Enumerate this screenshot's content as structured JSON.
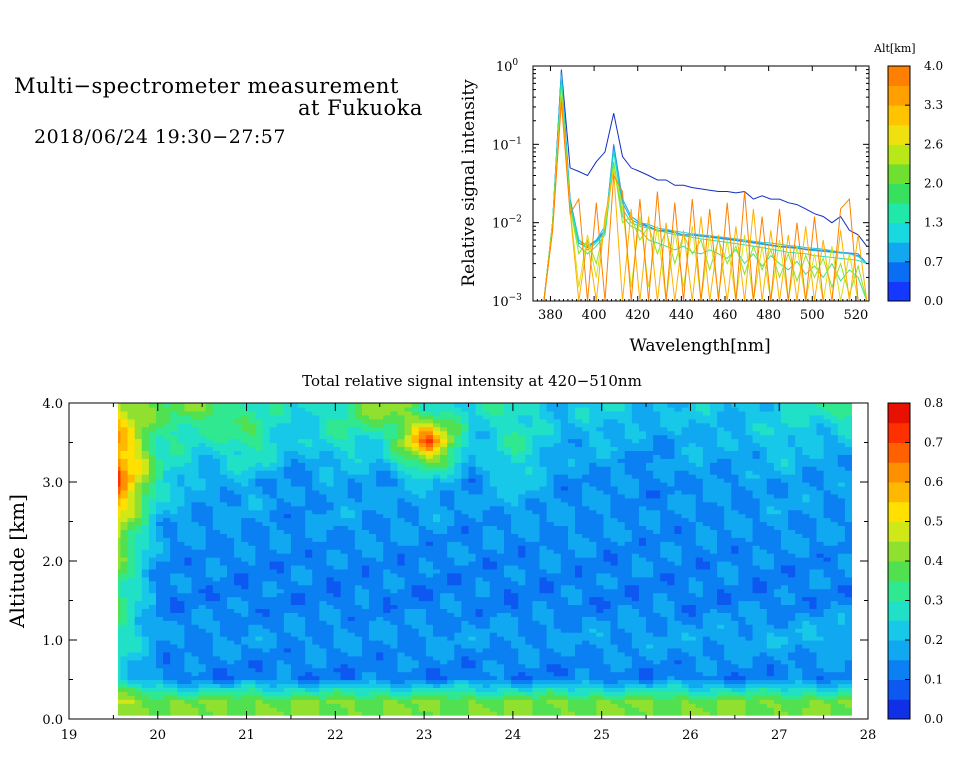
{
  "header": {
    "title_line1": "Multi−spectrometer measurement",
    "title_line2": "at Fukuoka",
    "period": "2018/06/24 19:30−27:57"
  },
  "chart_data": [
    {
      "type": "line",
      "xlabel": "Wavelength[nm]",
      "ylabel": "Relative signal intensity",
      "xlim": [
        372,
        526
      ],
      "ylim": [
        0.001,
        1
      ],
      "yscale": "log",
      "x_ticks": [
        380,
        400,
        420,
        440,
        460,
        480,
        500,
        520
      ],
      "y_ticks": [
        {
          "base": "10",
          "exp": "0",
          "value": 1
        },
        {
          "base": "10",
          "exp": "−1",
          "value": 0.1
        },
        {
          "base": "10",
          "exp": "−2",
          "value": 0.01
        },
        {
          "base": "10",
          "exp": "−3",
          "value": 0.001
        }
      ],
      "colorbar": {
        "label": "Alt[km]",
        "ticks": [
          "4.0",
          "3.3",
          "2.6",
          "2.0",
          "1.3",
          "0.7",
          "0.0"
        ],
        "colors": [
          "#1438ff",
          "#0a6ef5",
          "#12a8f0",
          "#18d8e0",
          "#20e8a8",
          "#38e060",
          "#70e030",
          "#b8e818",
          "#f0e010",
          "#ffc400",
          "#ffa000",
          "#ff8000"
        ]
      },
      "x": [
        377,
        381,
        385,
        389,
        393,
        397,
        401,
        405,
        409,
        413,
        417,
        421,
        425,
        429,
        433,
        437,
        441,
        445,
        449,
        453,
        457,
        461,
        465,
        469,
        473,
        477,
        481,
        485,
        489,
        493,
        497,
        501,
        505,
        509,
        513,
        517,
        521,
        525
      ],
      "series": [
        {
          "alt": 0.0,
          "color": "#1030c0",
          "values": [
            0.001,
            0.01,
            0.9,
            0.05,
            0.045,
            0.04,
            0.06,
            0.08,
            0.25,
            0.07,
            0.05,
            0.045,
            0.04,
            0.035,
            0.035,
            0.03,
            0.03,
            0.028,
            0.027,
            0.026,
            0.025,
            0.025,
            0.024,
            0.025,
            0.02,
            0.022,
            0.02,
            0.02,
            0.018,
            0.017,
            0.015,
            0.013,
            0.012,
            0.01,
            0.012,
            0.008,
            0.007,
            0.005
          ]
        },
        {
          "alt": 0.3,
          "color": "#1e78f0",
          "values": [
            0.001,
            0.01,
            0.85,
            0.02,
            0.006,
            0.005,
            0.006,
            0.008,
            0.1,
            0.02,
            0.012,
            0.01,
            0.009,
            0.008,
            0.008,
            0.0075,
            0.007,
            0.007,
            0.0068,
            0.0066,
            0.0064,
            0.0062,
            0.006,
            0.0058,
            0.0056,
            0.0054,
            0.0052,
            0.005,
            0.0049,
            0.0048,
            0.0046,
            0.0045,
            0.0044,
            0.0043,
            0.0042,
            0.0041,
            0.004,
            0.003
          ]
        },
        {
          "alt": 0.7,
          "color": "#12a8f0",
          "values": [
            0.001,
            0.01,
            0.8,
            0.02,
            0.0055,
            0.0048,
            0.0058,
            0.0078,
            0.09,
            0.018,
            0.011,
            0.0095,
            0.0088,
            0.0078,
            0.0078,
            0.0074,
            0.0069,
            0.0069,
            0.0067,
            0.0065,
            0.0063,
            0.0061,
            0.0059,
            0.0057,
            0.0055,
            0.0053,
            0.0051,
            0.0049,
            0.0048,
            0.0047,
            0.0045,
            0.0044,
            0.0043,
            0.0042,
            0.0041,
            0.004,
            0.0038,
            0.003
          ]
        },
        {
          "alt": 1.0,
          "color": "#18c8e8",
          "values": [
            0.001,
            0.01,
            0.75,
            0.018,
            0.006,
            0.005,
            0.006,
            0.009,
            0.085,
            0.02,
            0.012,
            0.01,
            0.0095,
            0.0085,
            0.0082,
            0.0078,
            0.0075,
            0.0072,
            0.007,
            0.0068,
            0.0066,
            0.0064,
            0.0062,
            0.006,
            0.0058,
            0.0056,
            0.0055,
            0.0053,
            0.0051,
            0.005,
            0.0048,
            0.0047,
            0.0046,
            0.0044,
            0.0042,
            0.004,
            0.0037,
            0.003
          ]
        },
        {
          "alt": 1.3,
          "color": "#20e0c0",
          "values": [
            0.001,
            0.01,
            0.7,
            0.017,
            0.006,
            0.0045,
            0.0055,
            0.0075,
            0.08,
            0.015,
            0.01,
            0.009,
            0.0085,
            0.008,
            0.0075,
            0.007,
            0.0068,
            0.0065,
            0.0062,
            0.006,
            0.0058,
            0.0056,
            0.0054,
            0.0052,
            0.005,
            0.0048,
            0.0046,
            0.0044,
            0.0042,
            0.0041,
            0.004,
            0.0038,
            0.0037,
            0.0036,
            0.0035,
            0.0034,
            0.0033,
            0.003
          ]
        },
        {
          "alt": 1.8,
          "color": "#40e080",
          "values": [
            0.001,
            0.01,
            0.6,
            0.016,
            0.005,
            0.004,
            0.005,
            0.007,
            0.06,
            0.012,
            0.009,
            0.008,
            0.006,
            0.0055,
            0.005,
            0.0045,
            0.005,
            0.0042,
            0.004,
            0.0045,
            0.004,
            0.0035,
            0.0045,
            0.003,
            0.004,
            0.0028,
            0.0038,
            0.003,
            0.0025,
            0.0032,
            0.0022,
            0.0028,
            0.002,
            0.003,
            0.0018,
            0.0025,
            0.002,
            0.001
          ]
        },
        {
          "alt": 2.3,
          "color": "#90e028",
          "values": [
            0.001,
            0.01,
            0.5,
            0.016,
            0.004,
            0.006,
            0.003,
            0.009,
            0.055,
            0.01,
            0.012,
            0.006,
            0.009,
            0.004,
            0.008,
            0.003,
            0.007,
            0.004,
            0.006,
            0.0025,
            0.006,
            0.003,
            0.005,
            0.0022,
            0.005,
            0.0025,
            0.0045,
            0.002,
            0.004,
            0.0018,
            0.0038,
            0.002,
            0.0035,
            0.0015,
            0.003,
            0.0012,
            0.0028,
            0.001
          ]
        },
        {
          "alt": 2.8,
          "color": "#d8e010",
          "values": [
            0.001,
            0.009,
            0.45,
            0.015,
            0.0015,
            0.007,
            0.002,
            0.01,
            0.05,
            0.016,
            0.0015,
            0.012,
            0.0015,
            0.009,
            0.001,
            0.008,
            0.0015,
            0.009,
            0.001,
            0.007,
            0.0012,
            0.006,
            0.001,
            0.007,
            0.001,
            0.005,
            0.001,
            0.006,
            0.001,
            0.005,
            0.001,
            0.004,
            0.001,
            0.005,
            0.001,
            0.004,
            0.001,
            0.001
          ]
        },
        {
          "alt": 3.3,
          "color": "#ffb000",
          "values": [
            0.001,
            0.008,
            0.4,
            0.014,
            0.001,
            0.006,
            0.001,
            0.012,
            0.045,
            0.001,
            0.015,
            0.001,
            0.012,
            0.001,
            0.01,
            0.001,
            0.008,
            0.001,
            0.012,
            0.001,
            0.007,
            0.001,
            0.009,
            0.001,
            0.015,
            0.001,
            0.008,
            0.001,
            0.007,
            0.001,
            0.009,
            0.001,
            0.006,
            0.001,
            0.008,
            0.001,
            0.007,
            0.001
          ]
        },
        {
          "alt": 3.8,
          "color": "#ff8000",
          "values": [
            0.001,
            0.008,
            0.35,
            0.013,
            0.02,
            0.001,
            0.018,
            0.001,
            0.04,
            0.025,
            0.001,
            0.02,
            0.001,
            0.025,
            0.001,
            0.018,
            0.001,
            0.02,
            0.001,
            0.015,
            0.001,
            0.018,
            0.001,
            0.025,
            0.001,
            0.012,
            0.001,
            0.015,
            0.001,
            0.01,
            0.001,
            0.012,
            0.001,
            0.001,
            0.015,
            0.02,
            0.001,
            0.001
          ]
        }
      ]
    },
    {
      "type": "heatmap",
      "title": "Total relative signal intensity at 420−510nm",
      "xlabel": "",
      "ylabel": "Altitude [km]",
      "xlim": [
        19,
        28
      ],
      "ylim": [
        0,
        4
      ],
      "x_ticks": [
        "19",
        "20",
        "21",
        "22",
        "23",
        "24",
        "25",
        "26",
        "27",
        "28"
      ],
      "y_ticks": [
        "0.0",
        "1.0",
        "2.0",
        "3.0",
        "4.0"
      ],
      "data_x_range": [
        19.5,
        27.95
      ],
      "colorbar": {
        "ticks": [
          "0.8",
          "0.7",
          "0.6",
          "0.5",
          "0.4",
          "0.3",
          "0.2",
          "0.1",
          "0.0"
        ],
        "colors": [
          "#1030e8",
          "#0c58f0",
          "#0a80f2",
          "#10a8f0",
          "#18c8e8",
          "#20e0c8",
          "#30e890",
          "#50e050",
          "#90e030",
          "#d0e818",
          "#ffe000",
          "#ffb800",
          "#ff9000",
          "#ff6000",
          "#ff3000",
          "#e81000"
        ]
      },
      "time_hours": [
        19.5,
        20,
        20.5,
        21,
        21.5,
        22,
        22.5,
        23,
        23.5,
        24,
        24.5,
        25,
        25.5,
        26,
        26.5,
        27,
        27.5,
        27.95
      ],
      "altitude_km": [
        0.2,
        0.5,
        1.0,
        1.5,
        2.0,
        2.5,
        3.0,
        3.5,
        3.9
      ],
      "values": [
        [
          0.45,
          0.4,
          0.4,
          0.4,
          0.4,
          0.4,
          0.4,
          0.4,
          0.4,
          0.4,
          0.4,
          0.4,
          0.4,
          0.4,
          0.4,
          0.4,
          0.4,
          0.4
        ],
        [
          0.25,
          0.12,
          0.12,
          0.12,
          0.12,
          0.12,
          0.12,
          0.12,
          0.12,
          0.12,
          0.12,
          0.12,
          0.12,
          0.12,
          0.12,
          0.12,
          0.12,
          0.12
        ],
        [
          0.3,
          0.15,
          0.15,
          0.16,
          0.15,
          0.16,
          0.15,
          0.16,
          0.16,
          0.16,
          0.16,
          0.17,
          0.17,
          0.17,
          0.18,
          0.19,
          0.2,
          0.21
        ],
        [
          0.35,
          0.12,
          0.13,
          0.12,
          0.13,
          0.12,
          0.13,
          0.12,
          0.13,
          0.12,
          0.13,
          0.12,
          0.13,
          0.12,
          0.13,
          0.12,
          0.13,
          0.13
        ],
        [
          0.4,
          0.14,
          0.14,
          0.13,
          0.14,
          0.13,
          0.14,
          0.13,
          0.14,
          0.13,
          0.14,
          0.13,
          0.14,
          0.13,
          0.14,
          0.13,
          0.14,
          0.14
        ],
        [
          0.5,
          0.18,
          0.15,
          0.16,
          0.14,
          0.17,
          0.15,
          0.16,
          0.14,
          0.16,
          0.15,
          0.15,
          0.14,
          0.15,
          0.15,
          0.16,
          0.15,
          0.15
        ],
        [
          0.7,
          0.28,
          0.16,
          0.2,
          0.13,
          0.18,
          0.15,
          0.22,
          0.14,
          0.25,
          0.14,
          0.15,
          0.13,
          0.16,
          0.15,
          0.18,
          0.15,
          0.17
        ],
        [
          0.6,
          0.3,
          0.25,
          0.35,
          0.2,
          0.28,
          0.24,
          0.7,
          0.2,
          0.3,
          0.18,
          0.2,
          0.15,
          0.2,
          0.18,
          0.25,
          0.18,
          0.22
        ],
        [
          0.5,
          0.35,
          0.4,
          0.3,
          0.25,
          0.3,
          0.45,
          0.3,
          0.25,
          0.3,
          0.2,
          0.25,
          0.2,
          0.22,
          0.2,
          0.25,
          0.3,
          0.4
        ]
      ]
    }
  ]
}
